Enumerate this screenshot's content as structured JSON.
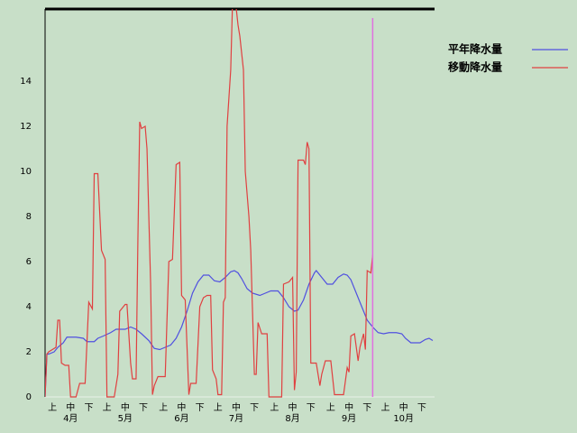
{
  "chart_data": {
    "type": "line",
    "series": [
      {
        "name": "平年降水量",
        "color": "#5050e0",
        "x": [
          0,
          1,
          2,
          5,
          7,
          10,
          12,
          17,
          21,
          23,
          27,
          29,
          32,
          36,
          39,
          44,
          47,
          50,
          53,
          57,
          60,
          63,
          66,
          69,
          72,
          75,
          78,
          81,
          84,
          87,
          90,
          93,
          96,
          99,
          102,
          104,
          106,
          108,
          111,
          114,
          118,
          121,
          124,
          128,
          131,
          134,
          137,
          139,
          142,
          145,
          148,
          149,
          152,
          155,
          158,
          161,
          164,
          166,
          168,
          171,
          174,
          177,
          180,
          183,
          186,
          189,
          193,
          196,
          198,
          201,
          206,
          209,
          211,
          213
        ],
        "values": [
          0,
          1.9,
          1.9,
          2.0,
          2.2,
          2.4,
          2.65,
          2.65,
          2.6,
          2.45,
          2.45,
          2.6,
          2.7,
          2.85,
          3.0,
          3.0,
          3.1,
          3.0,
          2.8,
          2.5,
          2.15,
          2.1,
          2.2,
          2.3,
          2.6,
          3.1,
          3.8,
          4.6,
          5.1,
          5.4,
          5.4,
          5.15,
          5.1,
          5.3,
          5.55,
          5.6,
          5.5,
          5.25,
          4.8,
          4.6,
          4.5,
          4.6,
          4.7,
          4.7,
          4.4,
          4.0,
          3.8,
          3.85,
          4.3,
          5.0,
          5.5,
          5.6,
          5.3,
          5.0,
          5.0,
          5.3,
          5.45,
          5.4,
          5.2,
          4.6,
          4.0,
          3.4,
          3.1,
          2.85,
          2.8,
          2.85,
          2.85,
          2.8,
          2.6,
          2.4,
          2.4,
          2.55,
          2.6,
          2.5
        ]
      },
      {
        "name": "移動降水量",
        "color": "#e04040",
        "x": [
          0,
          1,
          2,
          6,
          7,
          8,
          9,
          11,
          13,
          14,
          17,
          19,
          22,
          24,
          26,
          27,
          29,
          31,
          33,
          34,
          38,
          40,
          41,
          42,
          44,
          45,
          47,
          48,
          50,
          51,
          52,
          53,
          55,
          56,
          58,
          59,
          60,
          62,
          66,
          68,
          70,
          72,
          74,
          75,
          77,
          79,
          80,
          83,
          85,
          87,
          89,
          91,
          92,
          94,
          95,
          97,
          98,
          99,
          100,
          102,
          103,
          104,
          106,
          107,
          109,
          110,
          112,
          113,
          115,
          116,
          117,
          119,
          122,
          123,
          130,
          131,
          134,
          136,
          137,
          138,
          139,
          142,
          143,
          144,
          145,
          146,
          149,
          151,
          152,
          154,
          157,
          159,
          164,
          166,
          167,
          168,
          170,
          172,
          173,
          175,
          176,
          177,
          179,
          180
        ],
        "values": [
          0,
          1.9,
          2,
          2.2,
          3.4,
          3.4,
          1.5,
          1.4,
          1.4,
          0,
          0,
          0.6,
          0.6,
          4.2,
          3.9,
          9.9,
          9.9,
          6.5,
          6.1,
          0,
          0,
          1,
          3.8,
          3.9,
          4.1,
          4.1,
          1.5,
          0.8,
          0.8,
          7,
          12.2,
          11.9,
          12,
          11,
          5,
          0.1,
          0.5,
          0.9,
          0.9,
          6,
          6.1,
          10.3,
          10.4,
          4.5,
          4.3,
          0.1,
          0.6,
          0.6,
          4,
          4.4,
          4.5,
          4.5,
          1.2,
          0.8,
          0.1,
          0.1,
          4.2,
          4.4,
          12,
          14.5,
          17.5,
          18,
          16.5,
          16,
          14.5,
          10,
          8,
          6.5,
          1,
          1,
          3.3,
          2.8,
          2.8,
          0,
          0,
          5,
          5.1,
          5.3,
          0.3,
          1.1,
          10.5,
          10.5,
          10.3,
          11.3,
          11,
          1.5,
          1.5,
          0.5,
          1,
          1.6,
          1.6,
          0.1,
          0.1,
          1.3,
          1.1,
          2.7,
          2.8,
          1.6,
          2.2,
          2.8,
          2.1,
          5.6,
          5.5,
          6.3
        ]
      }
    ],
    "xlim": [
      0,
      214
    ],
    "ylim": [
      0,
      17.2
    ],
    "yticks": [
      0,
      2,
      4,
      6,
      8,
      10,
      12,
      14
    ],
    "xticks": [
      {
        "value": 4,
        "label": "上"
      },
      {
        "value": 14,
        "label": "中"
      },
      {
        "value": 24,
        "label": "下"
      },
      {
        "value": 34,
        "label": "上"
      },
      {
        "value": 44,
        "label": "中"
      },
      {
        "value": 54,
        "label": "下"
      },
      {
        "value": 65,
        "label": "上"
      },
      {
        "value": 75,
        "label": "中"
      },
      {
        "value": 85,
        "label": "下"
      },
      {
        "value": 95,
        "label": "上"
      },
      {
        "value": 105,
        "label": "中"
      },
      {
        "value": 115,
        "label": "下"
      },
      {
        "value": 126,
        "label": "上"
      },
      {
        "value": 136,
        "label": "中"
      },
      {
        "value": 146,
        "label": "下"
      },
      {
        "value": 157,
        "label": "上"
      },
      {
        "value": 167,
        "label": "中"
      },
      {
        "value": 177,
        "label": "下"
      },
      {
        "value": 187,
        "label": "上"
      },
      {
        "value": 197,
        "label": "中"
      },
      {
        "value": 207,
        "label": "下"
      }
    ],
    "months": [
      {
        "value": 14,
        "label": "4月"
      },
      {
        "value": 44,
        "label": "5月"
      },
      {
        "value": 75,
        "label": "6月"
      },
      {
        "value": 105,
        "label": "7月"
      },
      {
        "value": 136,
        "label": "8月"
      },
      {
        "value": 167,
        "label": "9月"
      },
      {
        "value": 197,
        "label": "10月"
      }
    ],
    "today_line": {
      "x": 180,
      "color": "#e070e0"
    }
  }
}
